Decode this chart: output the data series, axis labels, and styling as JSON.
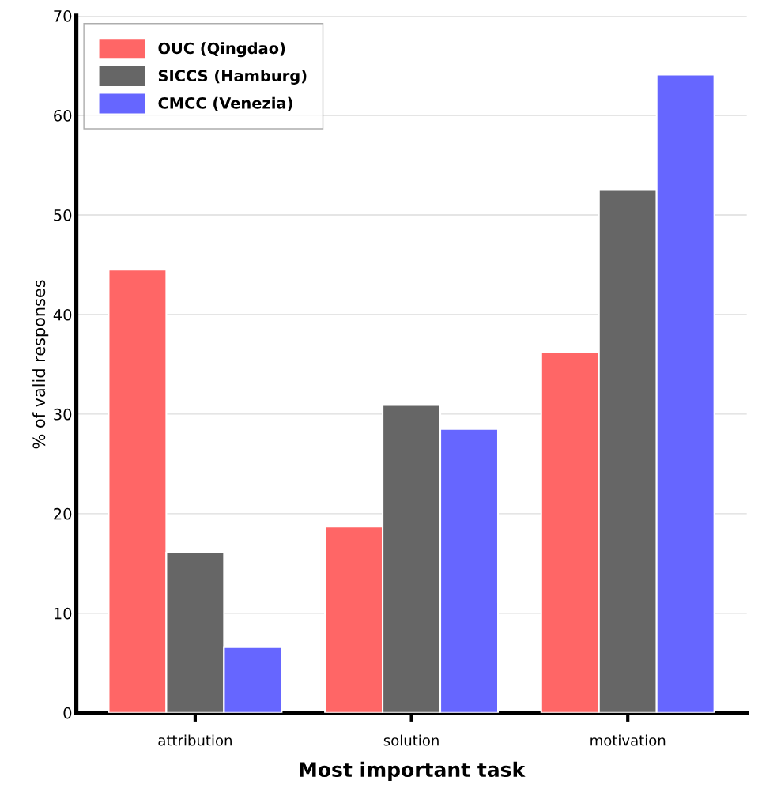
{
  "chart_data": {
    "type": "bar",
    "xlabel": "Most important task",
    "ylabel": "% of valid responses",
    "categories": [
      "attribution",
      "solution",
      "motivation"
    ],
    "series": [
      {
        "name": "OUC (Qingdao)",
        "color": "#ff6666",
        "values": [
          44.5,
          18.7,
          36.2
        ]
      },
      {
        "name": "SICCS (Hamburg)",
        "color": "#666666",
        "values": [
          16.1,
          30.9,
          52.5
        ]
      },
      {
        "name": "CMCC (Venezia)",
        "color": "#6666ff",
        "values": [
          6.6,
          28.5,
          64.1
        ]
      }
    ],
    "ylim": [
      0,
      70
    ],
    "yticks": [
      0,
      10,
      20,
      30,
      40,
      50,
      60,
      70
    ],
    "grid": "y",
    "legend": "top left"
  }
}
